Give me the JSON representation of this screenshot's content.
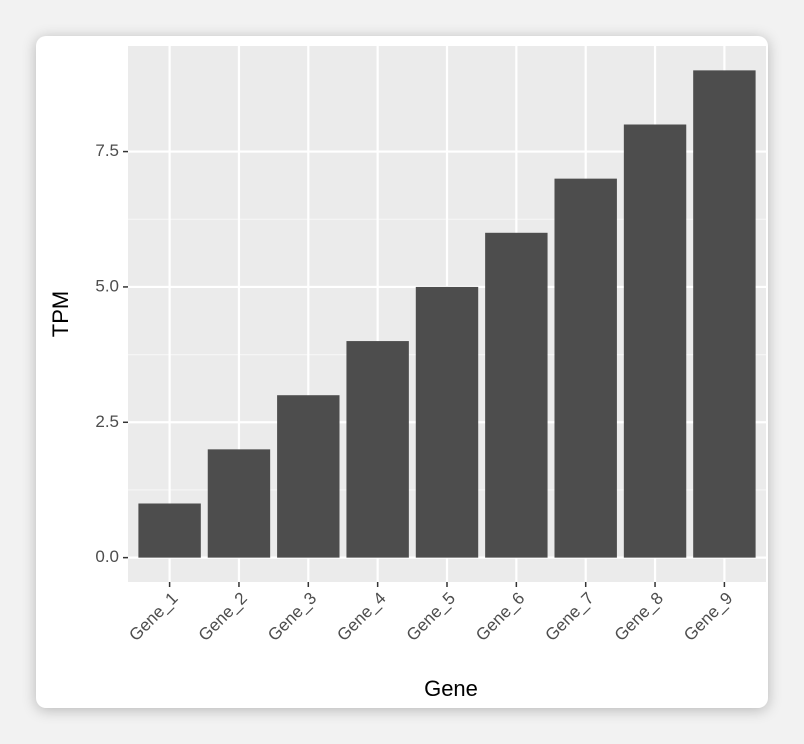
{
  "chart_data": {
    "type": "bar",
    "categories": [
      "Gene_1",
      "Gene_2",
      "Gene_3",
      "Gene_4",
      "Gene_5",
      "Gene_6",
      "Gene_7",
      "Gene_8",
      "Gene_9"
    ],
    "values": [
      1,
      2,
      3,
      4,
      5,
      6,
      7,
      8,
      9
    ],
    "color": "#4d4d4d",
    "x_label": "Gene",
    "y_label": "TPM",
    "ylim": [
      -0.45,
      9.45
    ],
    "yticks": [
      {
        "value": 0,
        "label": "0.0"
      },
      2.5,
      {
        "value": 5,
        "label": "5.0"
      },
      7.5
    ],
    "grid": true
  }
}
